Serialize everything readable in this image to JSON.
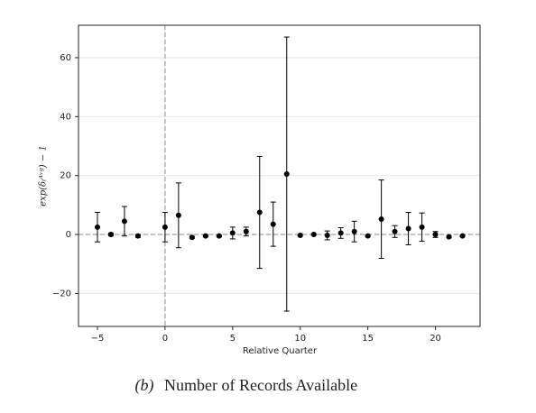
{
  "chart_data": {
    "type": "errorbar",
    "xlabel": "Relative Quarter",
    "ylabel": "exp(δₜᴬᵛᵍ) − 1",
    "caption_label": "(b)",
    "caption": "Number of Records Available",
    "x": [
      -5,
      -4,
      -3,
      -2,
      0,
      1,
      2,
      3,
      4,
      5,
      6,
      7,
      8,
      9,
      10,
      11,
      12,
      13,
      14,
      15,
      16,
      17,
      18,
      19,
      20,
      21,
      22
    ],
    "values": [
      2.5,
      0,
      4.5,
      -0.5,
      2.5,
      6.5,
      -1,
      -0.5,
      -0.5,
      0.5,
      1,
      7.5,
      3.5,
      20.5,
      -0.3,
      0,
      -0.3,
      0.5,
      1,
      -0.5,
      5.2,
      1,
      2,
      2.5,
      0,
      -0.8,
      -0.5
    ],
    "errors": [
      5,
      0.5,
      5,
      0.5,
      5,
      11,
      0.3,
      0.3,
      0.3,
      2,
      1.5,
      19,
      7.5,
      46.5,
      0.3,
      0.3,
      1.5,
      1.8,
      3.5,
      0.3,
      13.3,
      2,
      5.5,
      4.8,
      1,
      0.3,
      0.3
    ],
    "color": "#000000",
    "xlim": [
      -6.4,
      23.3
    ],
    "ylim": [
      -31.2,
      71
    ],
    "xticks": [
      {
        "value": -5,
        "label": "−5"
      },
      0,
      5,
      10,
      15,
      20
    ],
    "yticks": [
      {
        "value": -20,
        "label": "−20"
      },
      0,
      20,
      40,
      60
    ],
    "hline": 0,
    "vline": 0,
    "grid": true
  }
}
